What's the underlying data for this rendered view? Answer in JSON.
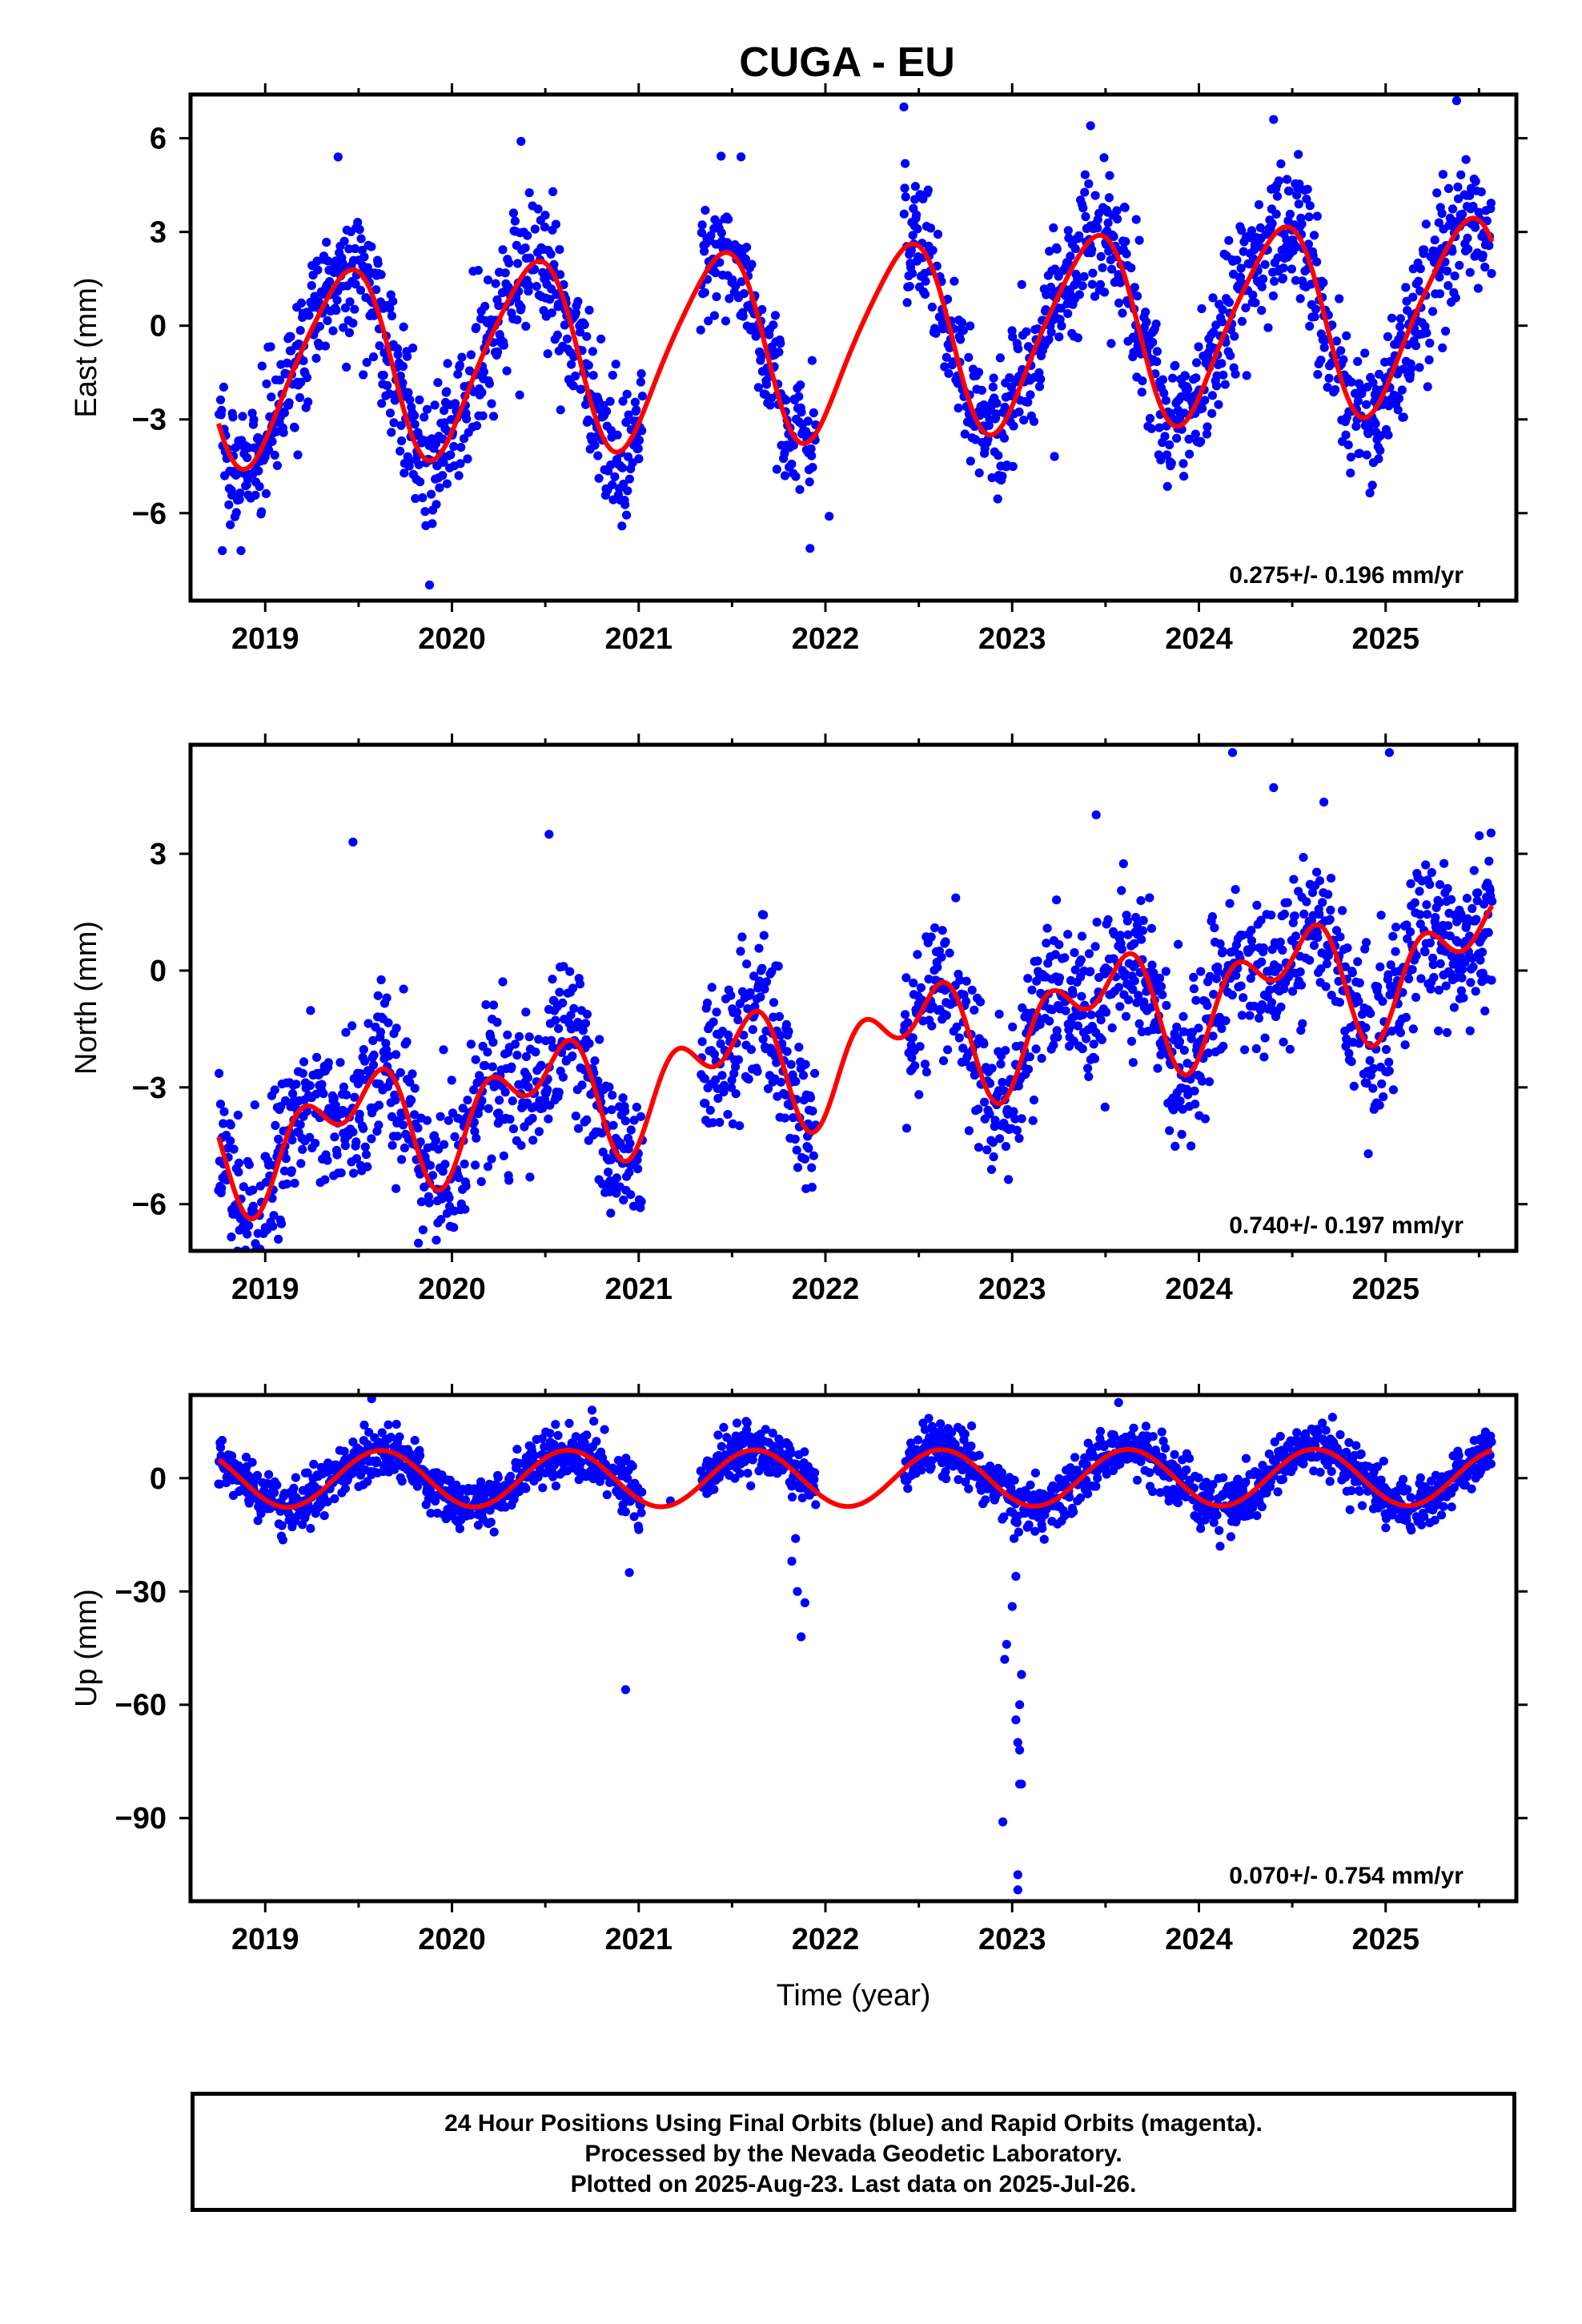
{
  "title": "CUGA - EU",
  "colors": {
    "points": "#0000ff",
    "fit": "#ff0000",
    "frame": "#000000"
  },
  "caption": {
    "line1": "24 Hour Positions Using Final Orbits (blue) and Rapid Orbits (magenta).",
    "line2": "Processed by the Nevada Geodetic Laboratory.",
    "line3": "Plotted on 2025-Aug-23. Last data on 2025-Jul-26."
  },
  "chart_data": [
    {
      "type": "scatter",
      "ylabel": "East (mm)",
      "xlabel": "",
      "xlim": [
        2018.6,
        2025.7
      ],
      "ylim": [
        -8.8,
        7.4
      ],
      "xticks": [
        2019,
        2020,
        2021,
        2022,
        2023,
        2024,
        2025
      ],
      "yticks": [
        -6,
        -3,
        0,
        3,
        6
      ],
      "tick_labels": [
        "−6",
        "−3",
        "0",
        "3",
        "6"
      ],
      "rate_label": "0.275+/- 0.196 mm/yr",
      "grid": false,
      "data_range": [
        2018.75,
        2025.57
      ],
      "gaps": [
        [
          2021.02,
          2021.33
        ],
        [
          2021.95,
          2022.42
        ]
      ],
      "fit": {
        "offset": -0.45,
        "rate": 0.275,
        "amplitude": 3.0,
        "peak": 2019.42,
        "semi_amplitude": 0.45,
        "semi_phase": 0.15
      },
      "noise": 1.1,
      "outliers": [
        [
          2018.77,
          -7.2
        ],
        [
          2018.87,
          -7.2
        ],
        [
          2019.88,
          -8.3
        ],
        [
          2019.86,
          -6.4
        ],
        [
          2022.02,
          -6.1
        ],
        [
          2022.42,
          7.0
        ],
        [
          2025.38,
          7.2
        ],
        [
          2024.4,
          6.6
        ],
        [
          2019.39,
          5.4
        ],
        [
          2020.37,
          5.9
        ],
        [
          2023.42,
          6.4
        ]
      ]
    },
    {
      "type": "scatter",
      "ylabel": "North (mm)",
      "xlabel": "",
      "xlim": [
        2018.6,
        2025.7
      ],
      "ylim": [
        -7.2,
        5.8
      ],
      "xticks": [
        2019,
        2020,
        2021,
        2022,
        2023,
        2024,
        2025
      ],
      "yticks": [
        -6,
        -3,
        0,
        3
      ],
      "tick_labels": [
        "−6",
        "−3",
        "0",
        "3"
      ],
      "rate_label": "0.740+/- 0.197 mm/yr",
      "grid": false,
      "data_range": [
        2018.75,
        2025.57
      ],
      "gaps": [
        [
          2021.02,
          2021.33
        ],
        [
          2021.95,
          2022.42
        ]
      ],
      "fit": {
        "offset": -2.0,
        "rate": 0.74,
        "amplitude": 1.1,
        "peak": 2019.47,
        "semi_amplitude": 0.9,
        "semi_phase": 0.2
      },
      "noise": 1.0,
      "outliers": [
        [
          2019.07,
          -6.9
        ],
        [
          2019.0,
          -6.6
        ],
        [
          2019.82,
          -7.0
        ],
        [
          2019.7,
          -5.6
        ],
        [
          2020.52,
          3.5
        ],
        [
          2019.47,
          3.3
        ],
        [
          2024.18,
          5.6
        ],
        [
          2025.02,
          5.6
        ],
        [
          2024.4,
          4.7
        ],
        [
          2023.45,
          4.0
        ]
      ]
    },
    {
      "type": "scatter",
      "ylabel": "Up (mm)",
      "xlabel": "Time (year)",
      "xlim": [
        2018.6,
        2025.7
      ],
      "ylim": [
        -112,
        22
      ],
      "xticks": [
        2019,
        2020,
        2021,
        2022,
        2023,
        2024,
        2025
      ],
      "yticks": [
        -90,
        -60,
        -30,
        0
      ],
      "tick_labels": [
        "−90",
        "−60",
        "−30",
        "0"
      ],
      "rate_label": "0.070+/- 0.754 mm/yr",
      "grid": false,
      "data_range": [
        2018.75,
        2025.57
      ],
      "gaps": [
        [
          2021.02,
          2021.33
        ],
        [
          2021.95,
          2022.42
        ]
      ],
      "fit": {
        "offset": 0.0,
        "rate": 0.07,
        "amplitude": 7.5,
        "peak": 2019.62,
        "semi_amplitude": 0.0,
        "semi_phase": 0.0
      },
      "noise": 3.5,
      "outliers": [
        [
          2020.93,
          -56
        ],
        [
          2020.95,
          -25
        ],
        [
          2021.87,
          -42
        ],
        [
          2021.85,
          -30
        ],
        [
          2021.89,
          -33
        ],
        [
          2021.82,
          -22
        ],
        [
          2021.84,
          -16
        ],
        [
          2022.95,
          -91
        ],
        [
          2023.03,
          -109
        ],
        [
          2023.03,
          -105
        ],
        [
          2023.05,
          -52
        ],
        [
          2023.04,
          -60
        ],
        [
          2023.02,
          -64
        ],
        [
          2023.03,
          -70
        ],
        [
          2023.04,
          -72
        ],
        [
          2023.05,
          -81
        ],
        [
          2023.04,
          -81
        ],
        [
          2022.97,
          -44
        ],
        [
          2022.96,
          -48
        ],
        [
          2023.0,
          -34
        ],
        [
          2023.02,
          -26
        ],
        [
          2023.01,
          -16
        ],
        [
          2019.57,
          21
        ],
        [
          2023.57,
          20
        ],
        [
          2020.75,
          18
        ],
        [
          2021.17,
          -6
        ]
      ]
    }
  ]
}
